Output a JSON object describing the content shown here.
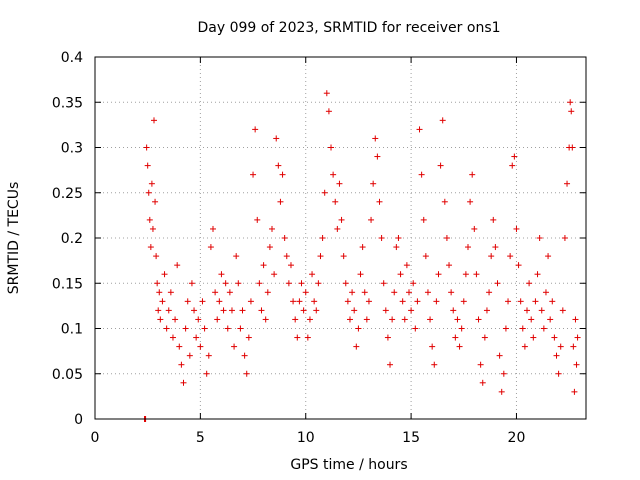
{
  "chart_data": {
    "type": "scatter",
    "title": "Day 099 of 2023, SRMTID for receiver ons1",
    "xlabel": "GPS time / hours",
    "ylabel": "SRMTID / TECUs",
    "xlim": [
      0,
      23.3
    ],
    "ylim": [
      0,
      0.4
    ],
    "xticks": [
      "0",
      "5",
      "10",
      "15",
      "20"
    ],
    "yticks": [
      "0",
      "0.05",
      "0.1",
      "0.15",
      "0.2",
      "0.25",
      "0.3",
      "0.35",
      "0.4"
    ],
    "grid": true,
    "marker": "+",
    "color": "#e00000",
    "series": [
      {
        "name": "ons1",
        "points": [
          [
            2.35,
            0.0
          ],
          [
            2.38,
            0.0
          ],
          [
            2.4,
            0.0
          ],
          [
            2.45,
            0.3
          ],
          [
            2.5,
            0.28
          ],
          [
            2.55,
            0.25
          ],
          [
            2.6,
            0.22
          ],
          [
            2.65,
            0.19
          ],
          [
            2.7,
            0.26
          ],
          [
            2.75,
            0.21
          ],
          [
            2.8,
            0.33
          ],
          [
            2.85,
            0.24
          ],
          [
            2.9,
            0.18
          ],
          [
            2.95,
            0.15
          ],
          [
            3.0,
            0.12
          ],
          [
            3.05,
            0.14
          ],
          [
            3.1,
            0.11
          ],
          [
            3.2,
            0.13
          ],
          [
            3.3,
            0.16
          ],
          [
            3.4,
            0.1
          ],
          [
            3.5,
            0.12
          ],
          [
            3.6,
            0.14
          ],
          [
            3.7,
            0.09
          ],
          [
            3.8,
            0.11
          ],
          [
            3.9,
            0.17
          ],
          [
            4.0,
            0.08
          ],
          [
            4.1,
            0.06
          ],
          [
            4.2,
            0.04
          ],
          [
            4.3,
            0.1
          ],
          [
            4.4,
            0.13
          ],
          [
            4.5,
            0.07
          ],
          [
            4.6,
            0.15
          ],
          [
            4.7,
            0.12
          ],
          [
            4.8,
            0.09
          ],
          [
            4.9,
            0.11
          ],
          [
            5.0,
            0.08
          ],
          [
            5.1,
            0.13
          ],
          [
            5.2,
            0.1
          ],
          [
            5.3,
            0.05
          ],
          [
            5.4,
            0.07
          ],
          [
            5.5,
            0.19
          ],
          [
            5.6,
            0.21
          ],
          [
            5.7,
            0.14
          ],
          [
            5.8,
            0.11
          ],
          [
            5.9,
            0.13
          ],
          [
            6.0,
            0.16
          ],
          [
            6.1,
            0.12
          ],
          [
            6.2,
            0.15
          ],
          [
            6.3,
            0.1
          ],
          [
            6.4,
            0.14
          ],
          [
            6.5,
            0.12
          ],
          [
            6.6,
            0.08
          ],
          [
            6.7,
            0.18
          ],
          [
            6.8,
            0.15
          ],
          [
            6.9,
            0.1
          ],
          [
            7.0,
            0.12
          ],
          [
            7.1,
            0.07
          ],
          [
            7.2,
            0.05
          ],
          [
            7.3,
            0.09
          ],
          [
            7.4,
            0.13
          ],
          [
            7.5,
            0.27
          ],
          [
            7.6,
            0.32
          ],
          [
            7.7,
            0.22
          ],
          [
            7.8,
            0.15
          ],
          [
            7.9,
            0.12
          ],
          [
            8.0,
            0.17
          ],
          [
            8.1,
            0.11
          ],
          [
            8.2,
            0.14
          ],
          [
            8.3,
            0.19
          ],
          [
            8.4,
            0.21
          ],
          [
            8.5,
            0.16
          ],
          [
            8.6,
            0.31
          ],
          [
            8.7,
            0.28
          ],
          [
            8.8,
            0.24
          ],
          [
            8.9,
            0.27
          ],
          [
            9.0,
            0.2
          ],
          [
            9.1,
            0.18
          ],
          [
            9.2,
            0.15
          ],
          [
            9.3,
            0.17
          ],
          [
            9.4,
            0.13
          ],
          [
            9.5,
            0.11
          ],
          [
            9.6,
            0.09
          ],
          [
            9.7,
            0.13
          ],
          [
            9.8,
            0.15
          ],
          [
            9.9,
            0.12
          ],
          [
            10.0,
            0.14
          ],
          [
            10.1,
            0.09
          ],
          [
            10.2,
            0.11
          ],
          [
            10.3,
            0.16
          ],
          [
            10.4,
            0.13
          ],
          [
            10.5,
            0.12
          ],
          [
            10.6,
            0.15
          ],
          [
            10.7,
            0.18
          ],
          [
            10.8,
            0.2
          ],
          [
            10.9,
            0.25
          ],
          [
            11.0,
            0.36
          ],
          [
            11.1,
            0.34
          ],
          [
            11.2,
            0.3
          ],
          [
            11.3,
            0.27
          ],
          [
            11.4,
            0.24
          ],
          [
            11.5,
            0.21
          ],
          [
            11.6,
            0.26
          ],
          [
            11.7,
            0.22
          ],
          [
            11.8,
            0.18
          ],
          [
            11.9,
            0.15
          ],
          [
            12.0,
            0.13
          ],
          [
            12.1,
            0.11
          ],
          [
            12.2,
            0.14
          ],
          [
            12.3,
            0.12
          ],
          [
            12.4,
            0.08
          ],
          [
            12.5,
            0.1
          ],
          [
            12.6,
            0.16
          ],
          [
            12.7,
            0.19
          ],
          [
            12.8,
            0.14
          ],
          [
            12.9,
            0.11
          ],
          [
            13.0,
            0.13
          ],
          [
            13.1,
            0.22
          ],
          [
            13.2,
            0.26
          ],
          [
            13.3,
            0.31
          ],
          [
            13.4,
            0.29
          ],
          [
            13.5,
            0.24
          ],
          [
            13.6,
            0.2
          ],
          [
            13.7,
            0.15
          ],
          [
            13.8,
            0.12
          ],
          [
            13.9,
            0.09
          ],
          [
            14.0,
            0.06
          ],
          [
            14.1,
            0.11
          ],
          [
            14.2,
            0.14
          ],
          [
            14.3,
            0.19
          ],
          [
            14.4,
            0.2
          ],
          [
            14.5,
            0.16
          ],
          [
            14.6,
            0.13
          ],
          [
            14.7,
            0.11
          ],
          [
            14.8,
            0.17
          ],
          [
            14.9,
            0.14
          ],
          [
            15.0,
            0.12
          ],
          [
            15.1,
            0.15
          ],
          [
            15.2,
            0.1
          ],
          [
            15.3,
            0.13
          ],
          [
            15.4,
            0.32
          ],
          [
            15.5,
            0.27
          ],
          [
            15.6,
            0.22
          ],
          [
            15.7,
            0.18
          ],
          [
            15.8,
            0.14
          ],
          [
            15.9,
            0.11
          ],
          [
            16.0,
            0.08
          ],
          [
            16.1,
            0.06
          ],
          [
            16.2,
            0.13
          ],
          [
            16.3,
            0.16
          ],
          [
            16.4,
            0.28
          ],
          [
            16.5,
            0.33
          ],
          [
            16.6,
            0.24
          ],
          [
            16.7,
            0.2
          ],
          [
            16.8,
            0.17
          ],
          [
            16.9,
            0.14
          ],
          [
            17.0,
            0.12
          ],
          [
            17.1,
            0.09
          ],
          [
            17.2,
            0.11
          ],
          [
            17.3,
            0.08
          ],
          [
            17.4,
            0.1
          ],
          [
            17.5,
            0.13
          ],
          [
            17.6,
            0.16
          ],
          [
            17.7,
            0.19
          ],
          [
            17.8,
            0.24
          ],
          [
            17.9,
            0.27
          ],
          [
            18.0,
            0.21
          ],
          [
            18.1,
            0.16
          ],
          [
            18.2,
            0.11
          ],
          [
            18.3,
            0.06
          ],
          [
            18.4,
            0.04
          ],
          [
            18.5,
            0.09
          ],
          [
            18.6,
            0.12
          ],
          [
            18.7,
            0.14
          ],
          [
            18.8,
            0.18
          ],
          [
            18.9,
            0.22
          ],
          [
            19.0,
            0.19
          ],
          [
            19.1,
            0.15
          ],
          [
            19.2,
            0.07
          ],
          [
            19.3,
            0.03
          ],
          [
            19.4,
            0.05
          ],
          [
            19.5,
            0.1
          ],
          [
            19.6,
            0.13
          ],
          [
            19.7,
            0.18
          ],
          [
            19.8,
            0.28
          ],
          [
            19.9,
            0.29
          ],
          [
            20.0,
            0.21
          ],
          [
            20.1,
            0.17
          ],
          [
            20.2,
            0.13
          ],
          [
            20.3,
            0.1
          ],
          [
            20.4,
            0.08
          ],
          [
            20.5,
            0.12
          ],
          [
            20.6,
            0.15
          ],
          [
            20.7,
            0.11
          ],
          [
            20.8,
            0.09
          ],
          [
            20.9,
            0.13
          ],
          [
            21.0,
            0.16
          ],
          [
            21.1,
            0.2
          ],
          [
            21.2,
            0.12
          ],
          [
            21.3,
            0.1
          ],
          [
            21.4,
            0.14
          ],
          [
            21.5,
            0.18
          ],
          [
            21.6,
            0.11
          ],
          [
            21.7,
            0.13
          ],
          [
            21.8,
            0.09
          ],
          [
            21.9,
            0.07
          ],
          [
            22.0,
            0.05
          ],
          [
            22.1,
            0.08
          ],
          [
            22.2,
            0.12
          ],
          [
            22.3,
            0.2
          ],
          [
            22.4,
            0.26
          ],
          [
            22.5,
            0.3
          ],
          [
            22.55,
            0.35
          ],
          [
            22.6,
            0.34
          ],
          [
            22.65,
            0.3
          ],
          [
            22.7,
            0.08
          ],
          [
            22.75,
            0.03
          ],
          [
            22.8,
            0.11
          ],
          [
            22.85,
            0.06
          ],
          [
            22.9,
            0.09
          ]
        ]
      }
    ]
  }
}
